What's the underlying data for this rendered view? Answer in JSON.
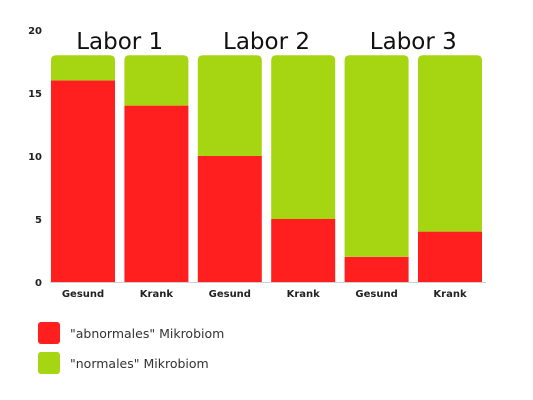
{
  "chart_data": {
    "type": "bar",
    "stacked": true,
    "groups": [
      "Labor 1",
      "Labor 2",
      "Labor 3"
    ],
    "categories": [
      "Gesund",
      "Krank",
      "Gesund",
      "Krank",
      "Gesund",
      "Krank"
    ],
    "series": [
      {
        "name": "\"abnormales\" Mikrobiom",
        "color": "#ff1f1f",
        "values": [
          16,
          14,
          10,
          5,
          2,
          4
        ]
      },
      {
        "name": "\"normales\" Mikrobiom",
        "color": "#a6d611",
        "values": [
          2,
          4,
          8,
          13,
          16,
          14
        ]
      }
    ],
    "ylim": [
      0,
      20
    ],
    "yticks": [
      0,
      5,
      10,
      15,
      20
    ],
    "grid": false,
    "legend_position": "bottom-left"
  }
}
